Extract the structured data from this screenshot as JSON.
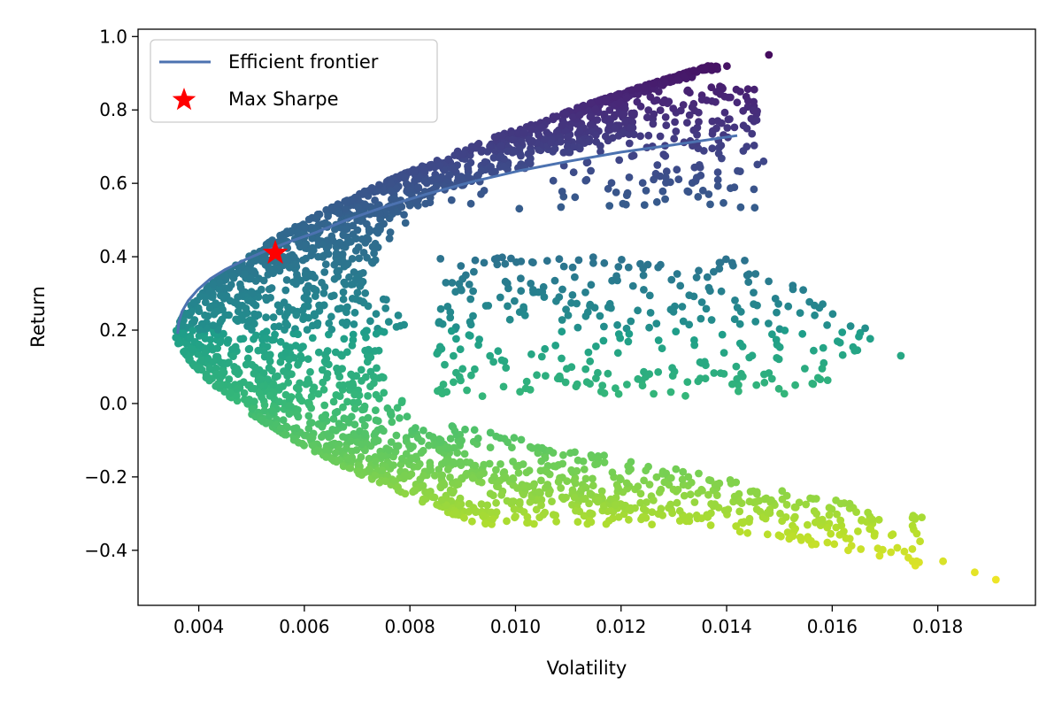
{
  "chart_data": {
    "type": "scatter",
    "title": "",
    "xlabel": "Volatility",
    "ylabel": "Return",
    "xlim": [
      0.00285,
      0.01985
    ],
    "ylim": [
      -0.55,
      1.02
    ],
    "x_ticks": [
      0.004,
      0.006,
      0.008,
      0.01,
      0.012,
      0.014,
      0.016,
      0.018
    ],
    "x_tick_labels": [
      "0.004",
      "0.006",
      "0.008",
      "0.010",
      "0.012",
      "0.014",
      "0.016",
      "0.018"
    ],
    "y_ticks": [
      -0.4,
      -0.2,
      0.0,
      0.2,
      0.4,
      0.6,
      0.8,
      1.0
    ],
    "y_tick_labels": [
      "−0.4",
      "−0.2",
      "0.0",
      "0.2",
      "0.4",
      "0.6",
      "0.8",
      "1.0"
    ],
    "grid": false,
    "legend_position": "top-left",
    "colormap": "viridis",
    "color_by": "return",
    "series": [
      {
        "name": "Efficient frontier",
        "kind": "line",
        "color": "#4c72b0",
        "x": [
          0.0036,
          0.00362,
          0.00368,
          0.0038,
          0.00398,
          0.00422,
          0.0045,
          0.00485,
          0.00525,
          0.0057,
          0.0062,
          0.0068,
          0.0075,
          0.0083,
          0.0092,
          0.0101,
          0.011,
          0.012,
          0.013,
          0.0142
        ],
        "y": [
          0.19,
          0.22,
          0.25,
          0.28,
          0.31,
          0.34,
          0.365,
          0.39,
          0.415,
          0.44,
          0.465,
          0.5,
          0.535,
          0.57,
          0.605,
          0.635,
          0.66,
          0.685,
          0.705,
          0.73
        ]
      },
      {
        "name": "Max Sharpe",
        "kind": "marker",
        "marker": "star",
        "color": "#ff0000",
        "x": [
          0.00545
        ],
        "y": [
          0.41
        ]
      }
    ],
    "outlier_points": [
      {
        "x": 0.0148,
        "y": 0.95
      },
      {
        "x": 0.0147,
        "y": 0.66
      },
      {
        "x": 0.0173,
        "y": 0.13
      },
      {
        "x": 0.0153,
        "y": 0.05
      },
      {
        "x": 0.0191,
        "y": -0.48
      },
      {
        "x": 0.0187,
        "y": -0.46
      },
      {
        "x": 0.0181,
        "y": -0.43
      },
      {
        "x": 0.0176,
        "y": -0.43
      }
    ]
  }
}
